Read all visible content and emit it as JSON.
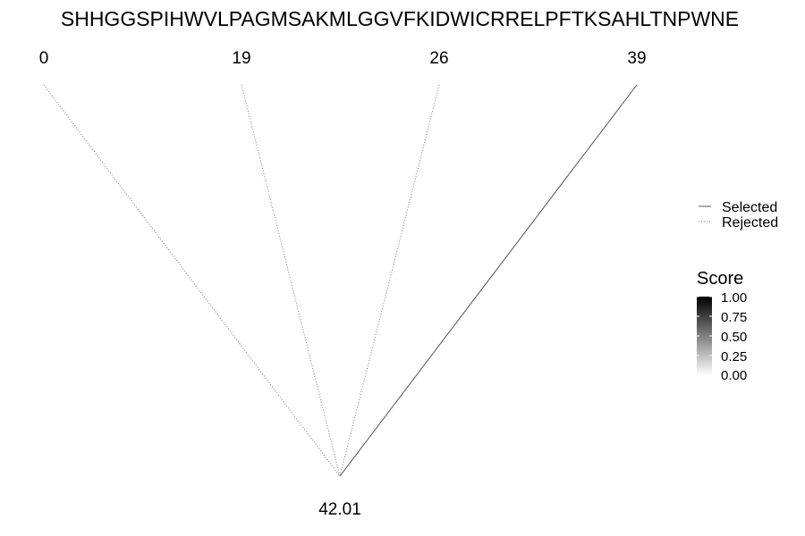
{
  "sequence": "SHHGGSPIHWVLPAGMSAKMLGGVFKIDWICRRELPFTKSAHLTNPWNE",
  "top_nodes": [
    {
      "label": "0",
      "status": "rejected"
    },
    {
      "label": "19",
      "status": "rejected"
    },
    {
      "label": "26",
      "status": "rejected"
    },
    {
      "label": "39",
      "status": "selected"
    }
  ],
  "root_node": {
    "label": "42.01"
  },
  "legend": {
    "line_types": [
      {
        "label": "Selected",
        "style": "solid"
      },
      {
        "label": "Rejected",
        "style": "dotted"
      }
    ],
    "score": {
      "title": "Score",
      "ticks": [
        "1.00",
        "0.75",
        "0.50",
        "0.25",
        "0.00"
      ],
      "color_high": "#000000",
      "color_low": "#ffffff"
    }
  },
  "colors": {
    "selected_line": "#555555",
    "rejected_line": "#777777"
  }
}
